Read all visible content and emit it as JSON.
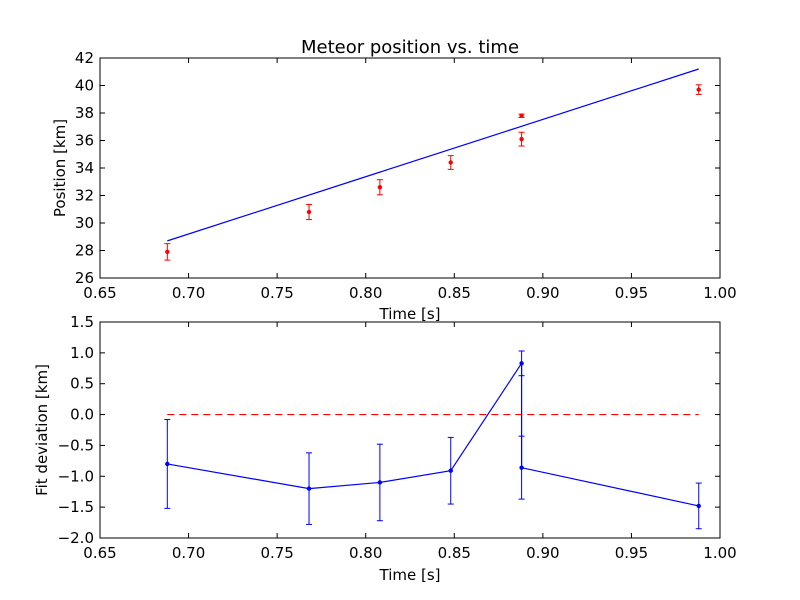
{
  "chart_data": [
    {
      "type": "scatter",
      "title": "Meteor position vs. time",
      "xlabel": "Time [s]",
      "ylabel": "Position [km]",
      "xlim": [
        0.65,
        1.0
      ],
      "ylim": [
        26,
        42
      ],
      "xticks": [
        0.65,
        0.7,
        0.75,
        0.8,
        0.85,
        0.9,
        0.95,
        1.0
      ],
      "xtick_labels": [
        "0.65",
        "0.70",
        "0.75",
        "0.80",
        "0.85",
        "0.90",
        "0.95",
        "1.00"
      ],
      "yticks": [
        26,
        28,
        30,
        32,
        34,
        36,
        38,
        40,
        42
      ],
      "ytick_labels": [
        "26",
        "28",
        "30",
        "32",
        "34",
        "36",
        "38",
        "40",
        "42"
      ],
      "grid": false,
      "series": [
        {
          "kind": "errorbar-points",
          "color": "#ff0000",
          "x": [
            0.688,
            0.768,
            0.808,
            0.848,
            0.888,
            0.888,
            0.988
          ],
          "y": [
            27.9,
            30.8,
            32.6,
            34.4,
            36.1,
            37.8,
            39.7
          ],
          "yerr": [
            0.6,
            0.55,
            0.55,
            0.5,
            0.5,
            0.12,
            0.35
          ]
        },
        {
          "kind": "line",
          "color": "#0000ff",
          "x": [
            0.688,
            0.988
          ],
          "y": [
            28.7,
            41.2
          ]
        }
      ]
    },
    {
      "type": "line",
      "title": "",
      "xlabel": "Time [s]",
      "ylabel": "Fit deviation [km]",
      "xlim": [
        0.65,
        1.0
      ],
      "ylim": [
        -2.0,
        1.5
      ],
      "xticks": [
        0.65,
        0.7,
        0.75,
        0.8,
        0.85,
        0.9,
        0.95,
        1.0
      ],
      "xtick_labels": [
        "0.65",
        "0.70",
        "0.75",
        "0.80",
        "0.85",
        "0.90",
        "0.95",
        "1.00"
      ],
      "yticks": [
        -2.0,
        -1.5,
        -1.0,
        -0.5,
        0.0,
        0.5,
        1.0,
        1.5
      ],
      "ytick_labels": [
        "−2.0",
        "−1.5",
        "−1.0",
        "−0.5",
        "0.0",
        "0.5",
        "1.0",
        "1.5"
      ],
      "grid": false,
      "series": [
        {
          "kind": "errorbar-line",
          "color": "#0000ff",
          "x": [
            0.688,
            0.768,
            0.808,
            0.848,
            0.888,
            0.888,
            0.988
          ],
          "y": [
            -0.8,
            -1.2,
            -1.1,
            -0.91,
            0.83,
            -0.86,
            -1.48
          ],
          "yerr": [
            0.72,
            0.58,
            0.62,
            0.54,
            0.2,
            0.51,
            0.37
          ]
        },
        {
          "kind": "dashed-line",
          "color": "#ff0000",
          "x": [
            0.688,
            0.988
          ],
          "y": [
            0.0,
            0.0
          ]
        }
      ]
    }
  ]
}
